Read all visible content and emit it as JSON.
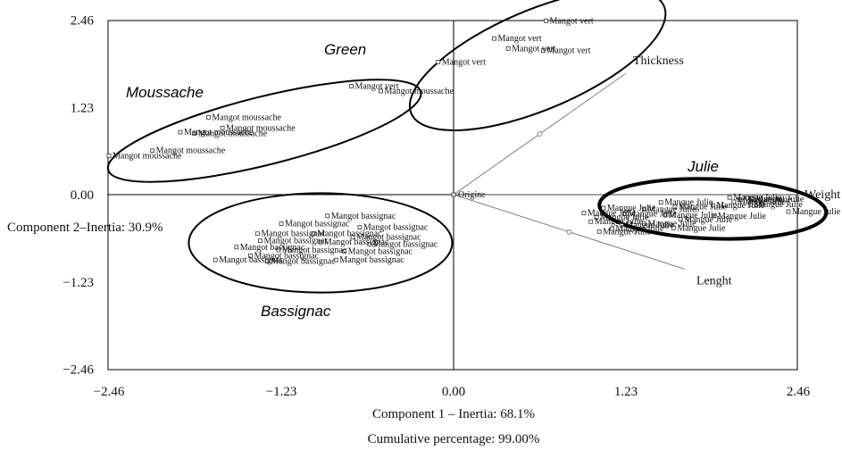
{
  "chart_data": {
    "type": "scatter",
    "xlabel": "Component 1 – Inertia: 68.1%",
    "ylabel": "Component 2–Inertia: 30.9%",
    "subtitle": "Cumulative percentage: 99.00%",
    "xlim": [
      -2.46,
      2.46
    ],
    "ylim": [
      -2.46,
      2.46
    ],
    "xticks": [
      "−2.46",
      "−1.23",
      "0.00",
      "1.23",
      "2.46"
    ],
    "yticks": [
      "2.46",
      "1.23",
      "0.00",
      "−1.23",
      "−2.46"
    ],
    "grid": false,
    "origin_label": "Origine",
    "variables": [
      {
        "name": "Thickness",
        "x": 1.23,
        "y": 1.71
      },
      {
        "name": "Weight",
        "x": 2.46,
        "y": 0.0
      },
      {
        "name": "Lenght",
        "x": 1.65,
        "y": -1.05
      }
    ],
    "groups": [
      {
        "name": "Green",
        "ellipse": {
          "cx": 0.6,
          "cy": 1.9,
          "rx": 1.96,
          "ry": 0.7,
          "angle": -23
        },
        "points": [
          {
            "label": "Mangot vert",
            "x": 0.66,
            "y": 2.45
          },
          {
            "label": "Mangot vert",
            "x": 0.29,
            "y": 2.2
          },
          {
            "label": "Mangot vert",
            "x": 0.39,
            "y": 2.06
          },
          {
            "label": "Mangot vert",
            "x": 0.64,
            "y": 2.03
          },
          {
            "label": "Mangot vert",
            "x": -0.11,
            "y": 1.87
          },
          {
            "label": "Mangot vert",
            "x": -0.73,
            "y": 1.53
          },
          {
            "label": "Mangot moussache",
            "x": -0.52,
            "y": 1.46
          }
        ]
      },
      {
        "name": "Moussache",
        "ellipse": {
          "cx": -1.35,
          "cy": 0.9,
          "rx": 2.3,
          "ry": 0.48,
          "angle": -14
        },
        "points": [
          {
            "label": "Mangot moussache",
            "x": -1.75,
            "y": 1.09
          },
          {
            "label": "Mangot moussache",
            "x": -1.65,
            "y": 0.94
          },
          {
            "label": "Mangot moussache",
            "x": -1.95,
            "y": 0.88
          },
          {
            "label": "Mangot moussache",
            "x": -1.85,
            "y": 0.86
          },
          {
            "label": "Mangot moussache",
            "x": -2.15,
            "y": 0.62
          },
          {
            "label": "Mangot moussache",
            "x": -2.46,
            "y": 0.55
          }
        ]
      },
      {
        "name": "Bassignac",
        "ellipse": {
          "cx": -0.95,
          "cy": -0.68,
          "rx": 1.88,
          "ry": 0.7,
          "angle": 0
        },
        "points": [
          {
            "label": "Mangot bassignac",
            "x": -0.9,
            "y": -0.3
          },
          {
            "label": "Mangot bassignac",
            "x": -1.23,
            "y": -0.41
          },
          {
            "label": "Mangot bassignac",
            "x": -0.67,
            "y": -0.46
          },
          {
            "label": "Mangot bassignac",
            "x": -1.4,
            "y": -0.55
          },
          {
            "label": "Mangot bassignac",
            "x": -1.0,
            "y": -0.55
          },
          {
            "label": "Mangot bassignac",
            "x": -0.72,
            "y": -0.6
          },
          {
            "label": "Mangot bassignac",
            "x": -1.38,
            "y": -0.65
          },
          {
            "label": "Mangot bassignac",
            "x": -0.95,
            "y": -0.67
          },
          {
            "label": "Mangot bassignac",
            "x": -0.6,
            "y": -0.7
          },
          {
            "label": "Mangot bassignac",
            "x": -1.55,
            "y": -0.74
          },
          {
            "label": "Mangot bassignac",
            "x": -1.25,
            "y": -0.78
          },
          {
            "label": "Mangot bassignac",
            "x": -0.78,
            "y": -0.8
          },
          {
            "label": "Mangot bassignac",
            "x": -1.45,
            "y": -0.86
          },
          {
            "label": "Mangot bassignac",
            "x": -0.84,
            "y": -0.92
          },
          {
            "label": "Mangot bassignac",
            "x": -1.7,
            "y": -0.92
          },
          {
            "label": "Mangot bassignac",
            "x": -1.33,
            "y": -0.94
          }
        ]
      },
      {
        "name": "Julie",
        "ellipse": {
          "cx": 1.85,
          "cy": -0.2,
          "rx": 1.62,
          "ry": 0.42,
          "angle": 2
        },
        "points": [
          {
            "label": "Mangue Julie",
            "x": 1.97,
            "y": -0.04
          },
          {
            "label": "Mangue Julie",
            "x": 2.13,
            "y": -0.06
          },
          {
            "label": "Mangue Julie",
            "x": 2.04,
            "y": -0.07
          },
          {
            "label": "Mangue Julie",
            "x": 2.0,
            "y": -0.1
          },
          {
            "label": "Mangue Julie",
            "x": 1.48,
            "y": -0.11
          },
          {
            "label": "Mangue Julie",
            "x": 2.12,
            "y": -0.14
          },
          {
            "label": "Mangue Julie",
            "x": 1.85,
            "y": -0.15
          },
          {
            "label": "Mangue Julie",
            "x": 1.58,
            "y": -0.17
          },
          {
            "label": "Mangue Julie",
            "x": 1.07,
            "y": -0.19
          },
          {
            "label": "Mangue Julie",
            "x": 1.36,
            "y": -0.21
          },
          {
            "label": "Mangue Julie",
            "x": 2.39,
            "y": -0.24
          },
          {
            "label": "Mangue Julie",
            "x": 0.93,
            "y": -0.26
          },
          {
            "label": "Mangue Julie",
            "x": 1.22,
            "y": -0.27
          },
          {
            "label": "Mangue Julie",
            "x": 1.51,
            "y": -0.29
          },
          {
            "label": "Mangue Julie",
            "x": 1.86,
            "y": -0.3
          },
          {
            "label": "Mangue Julie",
            "x": 1.02,
            "y": -0.32
          },
          {
            "label": "Mangue Julie",
            "x": 1.62,
            "y": -0.35
          },
          {
            "label": "Mangue Julie",
            "x": 0.98,
            "y": -0.38
          },
          {
            "label": "Mangue Julie",
            "x": 1.36,
            "y": -0.41
          },
          {
            "label": "Mangue Julie",
            "x": 1.2,
            "y": -0.43
          },
          {
            "label": "Mangue Julie",
            "x": 1.57,
            "y": -0.47
          },
          {
            "label": "Mangue Julie",
            "x": 1.13,
            "y": -0.48
          },
          {
            "label": "Mangue Julie",
            "x": 1.04,
            "y": -0.52
          }
        ]
      }
    ],
    "ellipse_color": "#000000",
    "vector_color": "#808080",
    "point_color": "#333333"
  }
}
